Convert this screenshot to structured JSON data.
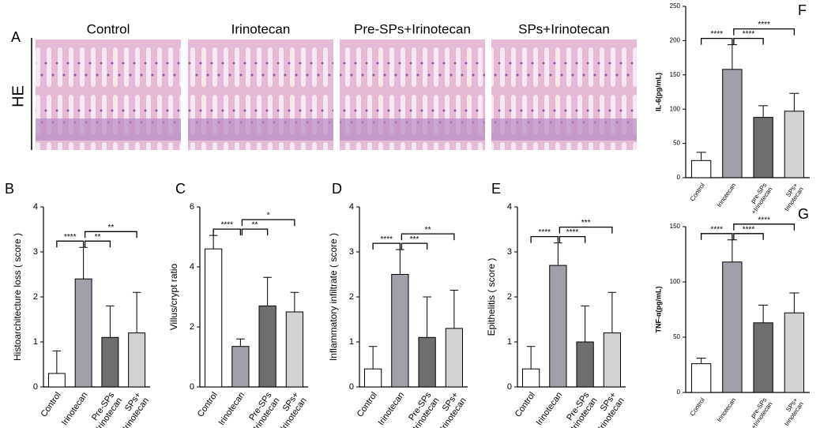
{
  "panel_a": {
    "label": "A",
    "stain": "HE",
    "columns": [
      "Control",
      "Irinotecan",
      "Pre-SPs+Irinotecan",
      "SPs+Irinotecan"
    ]
  },
  "chart_data": [
    {
      "type": "bar",
      "panel": "B",
      "ylabel": "Histoarchitecture loss ( score )",
      "categories": [
        "Control",
        "Irinotecan",
        "Pre-SPs\n+Irinotecan",
        "SPs+\nIrinotecan"
      ],
      "values": [
        0.3,
        2.4,
        1.1,
        1.2
      ],
      "errors": [
        0.5,
        0.7,
        0.7,
        0.9
      ],
      "colors": [
        "#ffffff",
        "#a0a0a8",
        "#6e6e6e",
        "#d2d2d2"
      ],
      "ylim": [
        0,
        4
      ],
      "yticks": [
        0,
        1,
        2,
        3,
        4
      ],
      "significance": [
        {
          "groups": [
            "Control",
            "Irinotecan"
          ],
          "label": "****"
        },
        {
          "groups": [
            "Irinotecan",
            "Pre-SPs\n+Irinotecan"
          ],
          "label": "**"
        },
        {
          "groups": [
            "Irinotecan",
            "SPs+\nIrinotecan"
          ],
          "label": "**"
        }
      ]
    },
    {
      "type": "bar",
      "panel": "C",
      "ylabel": "Villus/crypt ratio",
      "categories": [
        "Control",
        "Irinotecan",
        "Pre-SPs\n+Irinotecan",
        "SPs+\nIrinotecan"
      ],
      "values": [
        4.6,
        1.35,
        2.7,
        2.5
      ],
      "errors": [
        0.45,
        0.25,
        0.95,
        0.65
      ],
      "colors": [
        "#ffffff",
        "#a0a0a8",
        "#6e6e6e",
        "#d2d2d2"
      ],
      "ylim": [
        0,
        6
      ],
      "yticks": [
        0,
        2,
        4,
        6
      ],
      "significance": [
        {
          "groups": [
            "Control",
            "Irinotecan"
          ],
          "label": "****"
        },
        {
          "groups": [
            "Irinotecan",
            "Pre-SPs\n+Irinotecan"
          ],
          "label": "**"
        },
        {
          "groups": [
            "Irinotecan",
            "SPs+\nIrinotecan"
          ],
          "label": "*"
        }
      ]
    },
    {
      "type": "bar",
      "panel": "D",
      "ylabel": "Inflammatory infiltrate ( score )",
      "categories": [
        "Control",
        "Irinotecan",
        "Pre-SPs\n+Irinotecan",
        "SPs+\nIrinotecan"
      ],
      "values": [
        0.4,
        2.5,
        1.1,
        1.3
      ],
      "errors": [
        0.5,
        0.55,
        0.9,
        0.85
      ],
      "colors": [
        "#ffffff",
        "#a0a0a8",
        "#6e6e6e",
        "#d2d2d2"
      ],
      "ylim": [
        0,
        4
      ],
      "yticks": [
        0,
        1,
        2,
        3,
        4
      ],
      "significance": [
        {
          "groups": [
            "Control",
            "Irinotecan"
          ],
          "label": "****"
        },
        {
          "groups": [
            "Irinotecan",
            "Pre-SPs\n+Irinotecan"
          ],
          "label": "***"
        },
        {
          "groups": [
            "Irinotecan",
            "SPs+\nIrinotecan"
          ],
          "label": "**"
        }
      ]
    },
    {
      "type": "bar",
      "panel": "E",
      "ylabel": "Epithelitis ( score )",
      "categories": [
        "Control",
        "Irinotecan",
        "Pre-SPs\n+Irinotecan",
        "SPs+\nIrinotecan"
      ],
      "values": [
        0.4,
        2.7,
        1.0,
        1.2
      ],
      "errors": [
        0.5,
        0.5,
        0.8,
        0.9
      ],
      "colors": [
        "#ffffff",
        "#a0a0a8",
        "#6e6e6e",
        "#d2d2d2"
      ],
      "ylim": [
        0,
        4
      ],
      "yticks": [
        0,
        1,
        2,
        3,
        4
      ],
      "significance": [
        {
          "groups": [
            "Control",
            "Irinotecan"
          ],
          "label": "****"
        },
        {
          "groups": [
            "Irinotecan",
            "Pre-SPs\n+Irinotecan"
          ],
          "label": "****"
        },
        {
          "groups": [
            "Irinotecan",
            "SPs+\nIrinotecan"
          ],
          "label": "***"
        }
      ]
    },
    {
      "type": "bar",
      "panel": "F",
      "ylabel": "IL-6(pg/mL)",
      "categories": [
        "Control",
        "Irinotecan",
        "pre-SPs\n+Irinotecan",
        "SPs+\nIrinotecan"
      ],
      "values": [
        25,
        158,
        88,
        97
      ],
      "errors": [
        12,
        36,
        17,
        26
      ],
      "colors": [
        "#ffffff",
        "#a0a0a8",
        "#6e6e6e",
        "#d2d2d2"
      ],
      "ylim": [
        0,
        250
      ],
      "yticks": [
        0,
        50,
        100,
        150,
        200,
        250
      ],
      "significance": [
        {
          "groups": [
            "Control",
            "Irinotecan"
          ],
          "label": "****"
        },
        {
          "groups": [
            "Irinotecan",
            "pre-SPs\n+Irinotecan"
          ],
          "label": "****"
        },
        {
          "groups": [
            "Irinotecan",
            "SPs+\nIrinotecan"
          ],
          "label": "****"
        }
      ]
    },
    {
      "type": "bar",
      "panel": "G",
      "ylabel": "TNF-α(pg/mL)",
      "categories": [
        "Control",
        "Irinotecan",
        "pre-SPs\n+Irinotecan",
        "SPs+\nIrinotecan"
      ],
      "values": [
        26,
        118,
        63,
        72
      ],
      "errors": [
        5,
        20,
        16,
        18
      ],
      "colors": [
        "#ffffff",
        "#a0a0a8",
        "#6e6e6e",
        "#d2d2d2"
      ],
      "ylim": [
        0,
        150
      ],
      "yticks": [
        0,
        50,
        100,
        150
      ],
      "significance": [
        {
          "groups": [
            "Control",
            "Irinotecan"
          ],
          "label": "****"
        },
        {
          "groups": [
            "Irinotecan",
            "pre-SPs\n+Irinotecan"
          ],
          "label": "****"
        },
        {
          "groups": [
            "Irinotecan",
            "SPs+\nIrinotecan"
          ],
          "label": "****"
        }
      ]
    }
  ]
}
